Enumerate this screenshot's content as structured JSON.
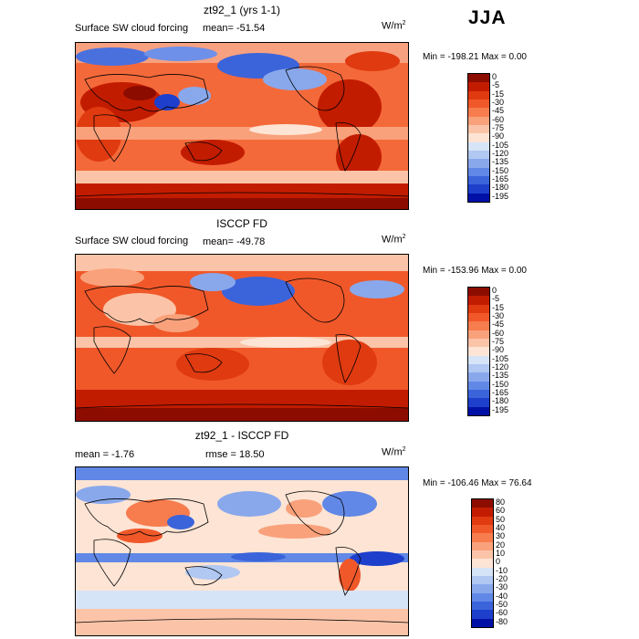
{
  "season": "JJA",
  "panels": [
    {
      "title": "zt92_1 (yrs 1-1)",
      "subtitle": "Surface SW cloud forcing",
      "stat": "mean=  -51.54",
      "units": "W/m",
      "units_exp": "2",
      "minmax": "Min = -198.21  Max =   0.00",
      "levels": [
        "0",
        "-5",
        "-15",
        "-30",
        "-45",
        "-60",
        "-75",
        "-90",
        "-105",
        "-120",
        "-135",
        "-150",
        "-165",
        "-180",
        "-195"
      ],
      "colors": [
        "#8c0c00",
        "#c21c00",
        "#e03a10",
        "#f0582a",
        "#f77c4e",
        "#f9a17b",
        "#fbc4a8",
        "#fde4d4",
        "#d6e4f8",
        "#b0c8f2",
        "#89a8ec",
        "#6188e6",
        "#3b64da",
        "#1d3fcc",
        "#0010a6"
      ]
    },
    {
      "title": "ISCCP FD",
      "subtitle": "Surface SW cloud forcing",
      "stat": "mean=  -49.78",
      "units": "W/m",
      "units_exp": "2",
      "minmax": "Min = -153.96  Max =   0.00",
      "levels": [
        "0",
        "-5",
        "-15",
        "-30",
        "-45",
        "-60",
        "-75",
        "-90",
        "-105",
        "-120",
        "-135",
        "-150",
        "-165",
        "-180",
        "-195"
      ],
      "colors": [
        "#8c0c00",
        "#c21c00",
        "#e03a10",
        "#f0582a",
        "#f77c4e",
        "#f9a17b",
        "#fbc4a8",
        "#fde4d4",
        "#d6e4f8",
        "#b0c8f2",
        "#89a8ec",
        "#6188e6",
        "#3b64da",
        "#1d3fcc",
        "#0010a6"
      ]
    },
    {
      "title": "zt92_1 - ISCCP FD",
      "stat_mean": "mean =   -1.76",
      "stat_rmse": "rmse =  18.50",
      "units": "W/m",
      "units_exp": "2",
      "minmax": "Min = -106.46  Max =  76.64",
      "levels": [
        "80",
        "60",
        "50",
        "40",
        "30",
        "20",
        "10",
        "0",
        "-10",
        "-20",
        "-30",
        "-40",
        "-50",
        "-60",
        "-80"
      ],
      "colors": [
        "#8c0c00",
        "#c21c00",
        "#e03a10",
        "#f0582a",
        "#f77c4e",
        "#f9a17b",
        "#fbc4a8",
        "#fde4d4",
        "#d6e4f8",
        "#b0c8f2",
        "#89a8ec",
        "#6188e6",
        "#3b64da",
        "#1d3fcc",
        "#0010a6"
      ]
    }
  ]
}
